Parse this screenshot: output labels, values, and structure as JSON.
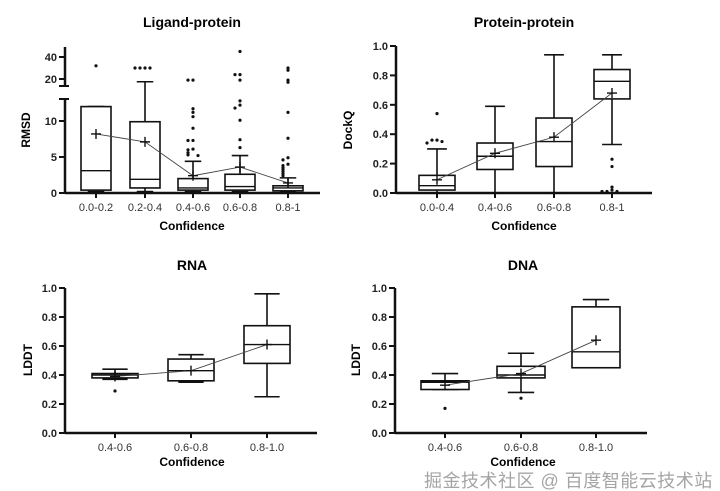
{
  "chart_data": [
    {
      "type": "box",
      "title": "Ligand-protein",
      "xlabel": "Confidence",
      "ylabel": "RMSD",
      "y_axis": "broken",
      "ylim_lower": [
        0,
        13.5
      ],
      "ylim_upper": [
        15,
        47
      ],
      "yticks": [
        0,
        5,
        10,
        20,
        40
      ],
      "categories": [
        "0.0-0.2",
        "0.2-0.4",
        "0.4-0.6",
        "0.6-0.8",
        "0.8-1"
      ],
      "boxes": [
        {
          "low": 0.2,
          "q1": 0.4,
          "median": 3.1,
          "q3": 12.0,
          "high": 12.0,
          "mean": 8.2,
          "outliers": [
            32
          ]
        },
        {
          "low": 0.2,
          "q1": 0.7,
          "median": 1.9,
          "q3": 9.9,
          "high": 17.5,
          "mean": 7.1,
          "outliers": [
            30,
            30,
            30,
            30
          ]
        },
        {
          "low": 0.2,
          "q1": 0.4,
          "median": 0.7,
          "q3": 2.0,
          "high": 4.4,
          "mean": 2.4,
          "outliers": [
            19,
            19,
            11.7,
            11.2,
            10.6,
            9.0,
            7.3,
            7.3,
            6.1,
            6.0,
            5.6,
            5.3,
            5.2
          ]
        },
        {
          "low": 0.2,
          "q1": 0.4,
          "median": 0.9,
          "q3": 2.6,
          "high": 5.2,
          "mean": 3.6,
          "outliers": [
            45,
            24,
            24,
            19,
            12.8,
            12.2,
            11.8,
            10.1,
            7.4,
            6.3
          ]
        },
        {
          "low": 0.1,
          "q1": 0.3,
          "median": 0.7,
          "q3": 1.0,
          "high": 2.1,
          "mean": 1.4,
          "outliers": [
            30,
            28,
            19,
            17,
            11.2,
            7.6,
            4.9,
            4.6,
            4.0,
            3.8,
            3.5,
            3.3,
            3.0,
            2.7,
            2.4
          ]
        }
      ]
    },
    {
      "type": "box",
      "title": "Protein-protein",
      "xlabel": "Confidence",
      "ylabel": "DockQ",
      "ylim": [
        0,
        1.0
      ],
      "yticks": [
        "0.0",
        "0.2",
        "0.4",
        "0.6",
        "0.8",
        "1.0"
      ],
      "categories": [
        "0.0-0.4",
        "0.4-0.6",
        "0.6-0.8",
        "0.8-1"
      ],
      "boxes": [
        {
          "low": 0.0,
          "q1": 0.02,
          "median": 0.05,
          "q3": 0.12,
          "high": 0.3,
          "mean": 0.09,
          "outliers": [
            0.54,
            0.36,
            0.36,
            0.35,
            0.34
          ]
        },
        {
          "low": 0.0,
          "q1": 0.16,
          "median": 0.25,
          "q3": 0.34,
          "high": 0.59,
          "mean": 0.27,
          "outliers": []
        },
        {
          "low": 0.0,
          "q1": 0.18,
          "median": 0.35,
          "q3": 0.51,
          "high": 0.94,
          "mean": 0.38,
          "outliers": []
        },
        {
          "low": 0.33,
          "q1": 0.64,
          "median": 0.76,
          "q3": 0.84,
          "high": 0.94,
          "mean": 0.68,
          "outliers": [
            0.23,
            0.18,
            0.04,
            0.02,
            0.01,
            0.01,
            0.01
          ]
        }
      ]
    },
    {
      "type": "box",
      "title": "RNA",
      "xlabel": "Confidence",
      "ylabel": "LDDT",
      "ylim": [
        0,
        1.0
      ],
      "yticks": [
        "0.0",
        "0.2",
        "0.4",
        "0.6",
        "0.8",
        "1.0"
      ],
      "categories": [
        "0.4-0.6",
        "0.6-0.8",
        "0.8-1.0"
      ],
      "boxes": [
        {
          "low": 0.37,
          "q1": 0.38,
          "median": 0.4,
          "q3": 0.41,
          "high": 0.44,
          "mean": 0.39,
          "outliers": [
            0.29
          ]
        },
        {
          "low": 0.35,
          "q1": 0.36,
          "median": 0.43,
          "q3": 0.51,
          "high": 0.54,
          "mean": 0.43,
          "outliers": []
        },
        {
          "low": 0.25,
          "q1": 0.48,
          "median": 0.61,
          "q3": 0.74,
          "high": 0.96,
          "mean": 0.61,
          "outliers": []
        }
      ]
    },
    {
      "type": "box",
      "title": "DNA",
      "xlabel": "Confidence",
      "ylabel": "LDDT",
      "ylim": [
        0,
        1.0
      ],
      "yticks": [
        "0.0",
        "0.2",
        "0.4",
        "0.6",
        "0.8",
        "1.0"
      ],
      "categories": [
        "0.4-0.6",
        "0.6-0.8",
        "0.8-1.0"
      ],
      "boxes": [
        {
          "low": 0.3,
          "q1": 0.3,
          "median": 0.35,
          "q3": 0.36,
          "high": 0.41,
          "mean": 0.33,
          "outliers": [
            0.17
          ]
        },
        {
          "low": 0.28,
          "q1": 0.38,
          "median": 0.4,
          "q3": 0.46,
          "high": 0.55,
          "mean": 0.41,
          "outliers": [
            0.24
          ]
        },
        {
          "low": 0.45,
          "q1": 0.45,
          "median": 0.56,
          "q3": 0.87,
          "high": 0.92,
          "mean": 0.64,
          "outliers": []
        }
      ]
    }
  ],
  "watermark": "掘金技术社区 @ 百度智能云技术站"
}
